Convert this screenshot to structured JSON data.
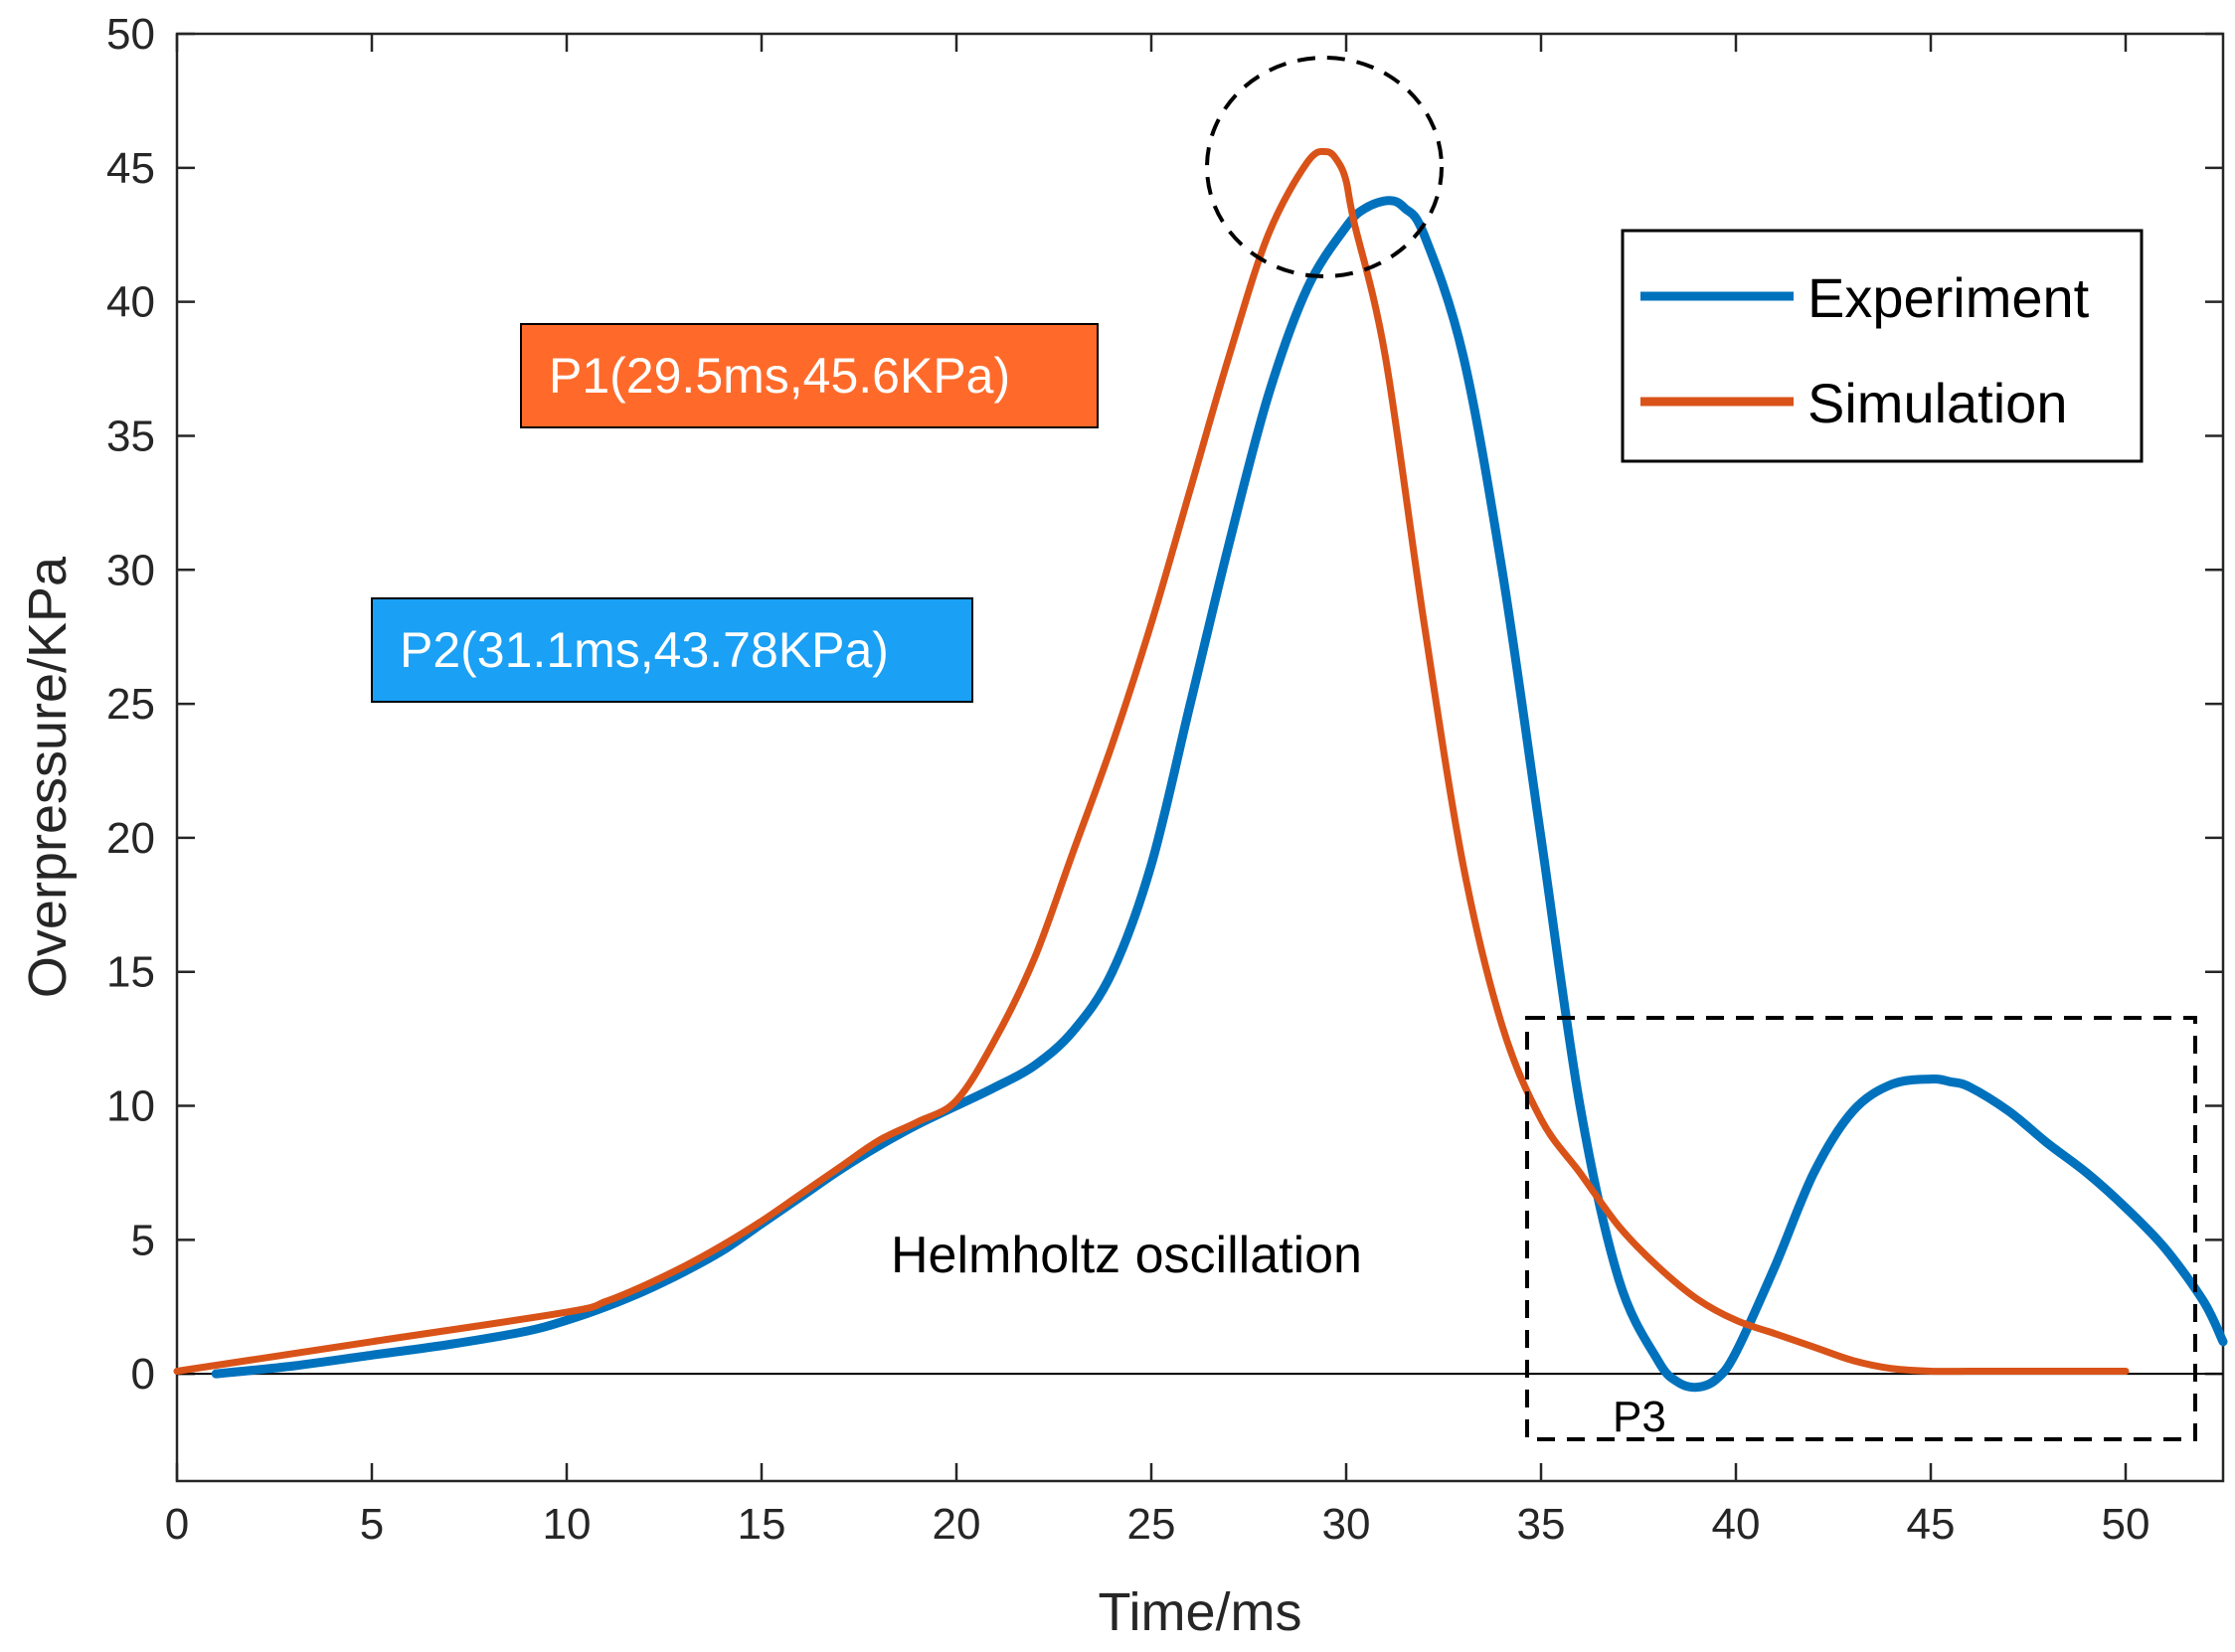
{
  "chart_data": {
    "type": "line",
    "title": "",
    "xlabel": "Time/ms",
    "ylabel": "Overpressure/KPa",
    "xlim": [
      0,
      52.5
    ],
    "ylim": [
      -4,
      50
    ],
    "xticks": [
      0,
      5,
      10,
      15,
      20,
      25,
      30,
      35,
      40,
      45,
      50
    ],
    "yticks": [
      0,
      5,
      10,
      15,
      20,
      25,
      30,
      35,
      40,
      45,
      50
    ],
    "legend": {
      "placement": "top-right",
      "entries": [
        "Experiment",
        "Simulation"
      ]
    },
    "series": [
      {
        "name": "Experiment",
        "color": "#0072BD",
        "x": [
          1,
          3,
          5,
          7,
          9,
          10,
          11,
          12,
          13,
          14,
          15,
          16,
          17,
          18,
          19,
          20,
          21,
          22,
          23,
          24,
          25,
          26,
          27,
          28,
          29,
          30,
          30.5,
          31.1,
          31.5,
          32,
          33,
          34,
          35,
          36,
          37,
          38,
          38.5,
          39,
          39.5,
          40,
          41,
          42,
          43,
          44,
          45,
          45.5,
          46,
          47,
          48,
          49,
          50,
          51,
          52,
          52.5
        ],
        "y": [
          0,
          0.3,
          0.7,
          1.1,
          1.6,
          2.0,
          2.5,
          3.1,
          3.8,
          4.6,
          5.6,
          6.6,
          7.6,
          8.5,
          9.3,
          10.0,
          10.7,
          11.5,
          12.8,
          15.0,
          19.0,
          25.0,
          31.0,
          36.5,
          40.5,
          42.8,
          43.5,
          43.78,
          43.5,
          42.5,
          38.0,
          30.0,
          20.0,
          10.0,
          3.5,
          0.5,
          -0.3,
          -0.5,
          -0.2,
          0.8,
          4.0,
          7.5,
          9.8,
          10.8,
          11.0,
          10.9,
          10.7,
          9.8,
          8.6,
          7.5,
          6.2,
          4.7,
          2.7,
          1.2
        ]
      },
      {
        "name": "Simulation",
        "color": "#D95319",
        "x": [
          0,
          5,
          10,
          11,
          12,
          13,
          14,
          15,
          16,
          17,
          18,
          19,
          20,
          21,
          22,
          23,
          24,
          25,
          26,
          27,
          28,
          29,
          29.5,
          29.8,
          30.0,
          30.2,
          31,
          32,
          33,
          34,
          35,
          36,
          37,
          38,
          39,
          40,
          41,
          42,
          43,
          44,
          45,
          46,
          47,
          48,
          49,
          50
        ],
        "y": [
          0.1,
          1.2,
          2.3,
          2.7,
          3.3,
          4.0,
          4.8,
          5.7,
          6.7,
          7.7,
          8.7,
          9.4,
          10.2,
          12.5,
          15.5,
          19.5,
          23.5,
          28.0,
          33.0,
          38.0,
          42.5,
          45.2,
          45.6,
          45.2,
          44.5,
          43.0,
          38.0,
          28.0,
          19.0,
          13.0,
          9.5,
          7.5,
          5.5,
          4.0,
          2.8,
          2.0,
          1.5,
          1.0,
          0.5,
          0.2,
          0.1,
          0.1,
          0.1,
          0.1,
          0.1,
          0.1
        ]
      }
    ],
    "annotations": [
      {
        "text": "P1(29.5ms,45.6KPa)",
        "x": 29.5,
        "y": 45.6,
        "box_color": "#FF6A2A"
      },
      {
        "text": "P2(31.1ms,43.78KPa)",
        "x": 31.1,
        "y": 43.78,
        "box_color": "#1AA0F5"
      },
      {
        "text": "Helmholtz oscillation"
      },
      {
        "text": "P3"
      }
    ]
  }
}
